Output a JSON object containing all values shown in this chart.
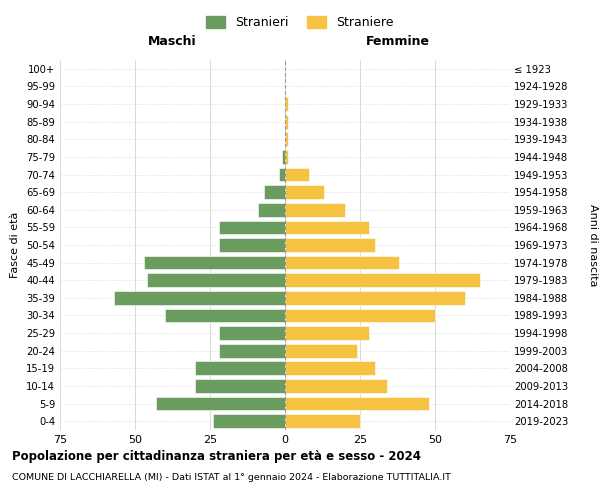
{
  "age_groups": [
    "0-4",
    "5-9",
    "10-14",
    "15-19",
    "20-24",
    "25-29",
    "30-34",
    "35-39",
    "40-44",
    "45-49",
    "50-54",
    "55-59",
    "60-64",
    "65-69",
    "70-74",
    "75-79",
    "80-84",
    "85-89",
    "90-94",
    "95-99",
    "100+"
  ],
  "birth_years": [
    "2019-2023",
    "2014-2018",
    "2009-2013",
    "2004-2008",
    "1999-2003",
    "1994-1998",
    "1989-1993",
    "1984-1988",
    "1979-1983",
    "1974-1978",
    "1969-1973",
    "1964-1968",
    "1959-1963",
    "1954-1958",
    "1949-1953",
    "1944-1948",
    "1939-1943",
    "1934-1938",
    "1929-1933",
    "1924-1928",
    "≤ 1923"
  ],
  "maschi": [
    24,
    43,
    30,
    30,
    22,
    22,
    40,
    57,
    46,
    47,
    22,
    22,
    9,
    7,
    2,
    1,
    0,
    0,
    0,
    0,
    0
  ],
  "femmine": [
    25,
    48,
    34,
    30,
    24,
    28,
    50,
    60,
    65,
    38,
    30,
    28,
    20,
    13,
    8,
    1,
    1,
    1,
    1,
    0,
    0
  ],
  "color_maschi": "#6a9c5f",
  "color_femmine": "#f5c242",
  "xlim": 75,
  "xlabel_left": "Maschi",
  "xlabel_right": "Femmine",
  "ylabel_left": "Fasce di età",
  "ylabel_right": "Anni di nascita",
  "legend_maschi": "Stranieri",
  "legend_femmine": "Straniere",
  "title": "Popolazione per cittadinanza straniera per età e sesso - 2024",
  "subtitle": "COMUNE DI LACCHIARELLA (MI) - Dati ISTAT al 1° gennaio 2024 - Elaborazione TUTTITALIA.IT",
  "grid_color": "#cccccc",
  "bg_color": "#ffffff",
  "bar_edge_color": "#ffffff"
}
